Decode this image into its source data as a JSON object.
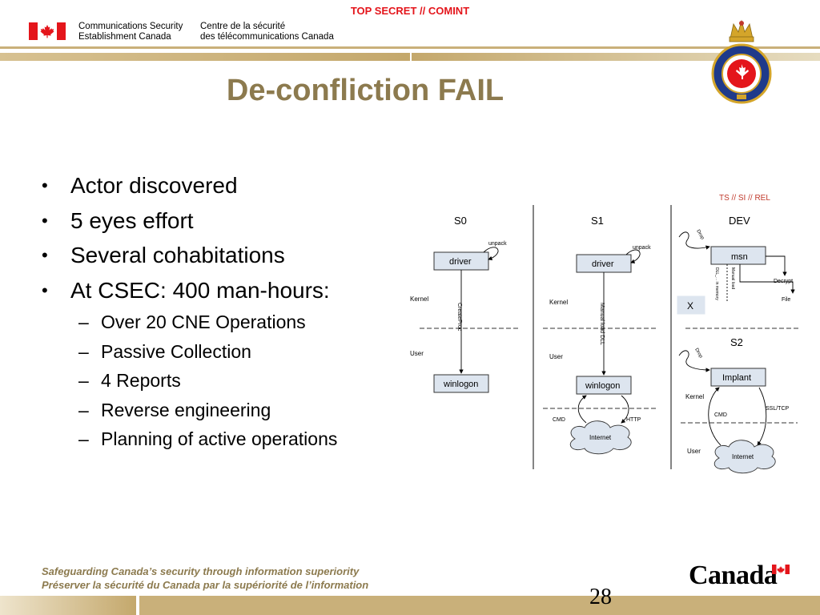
{
  "header": {
    "classification": "TOP SECRET // COMINT",
    "org_en_line1": "Communications Security",
    "org_en_line2": "Establishment Canada",
    "org_fr_line1": "Centre de la sécurité",
    "org_fr_line2": "des télécommunications Canada"
  },
  "slide": {
    "title": "De-confliction FAIL",
    "bullets": [
      "Actor discovered",
      "5 eyes effort",
      "Several cohabitations",
      "At CSEC: 400 man-hours:"
    ],
    "sub_bullets": [
      "Over 20 CNE Operations",
      "Passive Collection",
      "4 Reports",
      "Reverse engineering",
      "Planning of active operations"
    ]
  },
  "diagram": {
    "marking": "TS // SI // REL",
    "s0": {
      "label": "S0",
      "driver": "driver",
      "unpack": "unpack",
      "kernel": "Kernel",
      "user": "User",
      "arrow": "CreateProc",
      "winlogon": "winlogon"
    },
    "s1": {
      "label": "S1",
      "driver": "driver",
      "unpack": "unpack",
      "kernel": "Kernel",
      "user": "User",
      "arrow": "Manual load DLL",
      "winlogon": "winlogon",
      "cmd": "CMD",
      "http": "HTTP",
      "internet": "Internet"
    },
    "dev": {
      "label": "DEV",
      "drop": "Drop",
      "msn": "msn",
      "loadlib": "DLL_... in memory",
      "manual": "Manual load",
      "decrypt": "Decrypt",
      "file": "File",
      "x": "X"
    },
    "s2": {
      "label": "S2",
      "drop": "Drop",
      "implant": "Implant",
      "kernel": "Kernel",
      "user": "User",
      "cmd": "CMD",
      "ssl": "SSL/TCP",
      "internet": "Internet"
    }
  },
  "footer": {
    "tagline_en": "Safeguarding Canada’s security through information superiority",
    "tagline_fr": "Préserver la sécurité du Canada par la supériorité de l’information",
    "page_number": "28",
    "wordmark": "Canada"
  },
  "colors": {
    "gold": "#c9b07a",
    "title": "#8c7a4e",
    "classification": "#e4151b",
    "flag_red": "#e4151b"
  }
}
